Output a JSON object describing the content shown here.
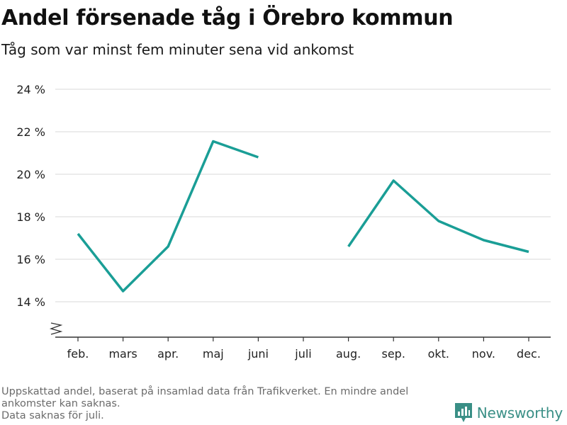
{
  "header": {
    "title": "Andel försenade tåg i Örebro kommun",
    "subtitle": "Tåg som var minst fem minuter sena vid ankomst"
  },
  "chart_data": {
    "type": "line",
    "title": "Andel försenade tåg i Örebro kommun",
    "subtitle": "Tåg som var minst fem minuter sena vid ankomst",
    "xlabel": "",
    "ylabel": "",
    "categories": [
      "feb.",
      "mars",
      "apr.",
      "maj",
      "juni",
      "juli",
      "aug.",
      "sep.",
      "okt.",
      "nov.",
      "dec."
    ],
    "series": [
      {
        "values": [
          17.2,
          14.5,
          16.6,
          21.55,
          20.8,
          null,
          16.6,
          19.7,
          17.8,
          16.9,
          16.35
        ],
        "color": "#1a9e96"
      }
    ],
    "yticks": [
      14,
      16,
      18,
      20,
      22,
      24
    ],
    "ytick_suffix": " %",
    "ylim": [
      12.5,
      24.5
    ],
    "axis_break": true,
    "grid": true,
    "legend": "none"
  },
  "footer": {
    "note_line1": "Uppskattad andel, baserat på insamlad data från Trafikverket. En mindre andel ankomster kan saknas.",
    "note_line2": "Data saknas för juli.",
    "brand": "Newsworthy",
    "brand_color": "#3a8f86"
  }
}
